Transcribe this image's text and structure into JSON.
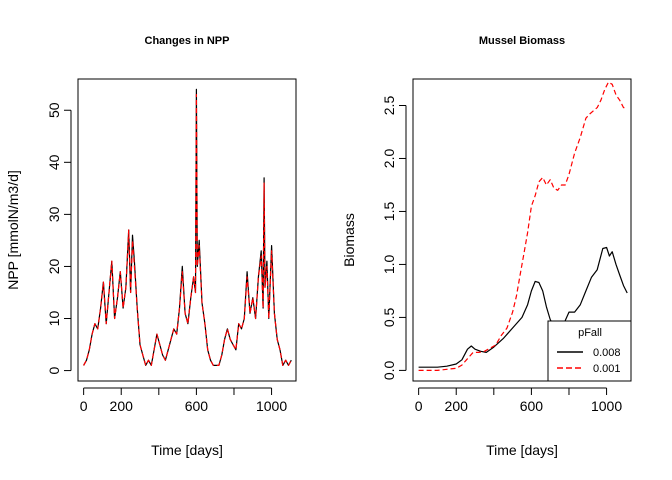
{
  "chart_data": [
    {
      "type": "line",
      "title": "Changes in NPP",
      "xlabel": "Time [days]",
      "ylabel": "NPP [mmolN/m3/d]",
      "xlim": [
        -30,
        1130
      ],
      "ylim": [
        -2,
        56
      ],
      "xticks": [
        0,
        200,
        400,
        600,
        800,
        1000
      ],
      "xtick_labels": [
        "0",
        "200",
        "",
        "600",
        "",
        "1000"
      ],
      "yticks": [
        0,
        10,
        20,
        30,
        40,
        50
      ],
      "ytick_labels": [
        "0",
        "10",
        "20",
        "30",
        "40",
        "50"
      ],
      "grid": false,
      "series": [
        {
          "style": "solid",
          "color": "#000000",
          "x": [
            0,
            15,
            30,
            45,
            60,
            75,
            90,
            105,
            120,
            135,
            150,
            165,
            180,
            195,
            210,
            225,
            240,
            250,
            260,
            270,
            285,
            300,
            315,
            330,
            345,
            360,
            375,
            390,
            405,
            420,
            435,
            450,
            465,
            480,
            495,
            510,
            525,
            540,
            555,
            570,
            585,
            595,
            600,
            605,
            615,
            630,
            645,
            660,
            675,
            690,
            705,
            720,
            735,
            750,
            765,
            780,
            795,
            810,
            825,
            840,
            855,
            870,
            885,
            900,
            915,
            930,
            945,
            955,
            960,
            965,
            975,
            985,
            1000,
            1015,
            1030,
            1045,
            1060,
            1075,
            1090,
            1105
          ],
          "values": [
            1,
            2,
            4,
            7,
            9,
            8,
            12,
            17,
            9,
            15,
            21,
            10,
            14,
            19,
            12,
            16,
            27,
            15,
            26,
            21,
            12,
            5,
            3,
            1,
            2,
            1,
            4,
            7,
            5,
            3,
            2,
            4,
            6,
            8,
            7,
            12,
            20,
            11,
            9,
            14,
            18,
            15,
            54,
            20,
            25,
            13,
            9,
            4,
            2,
            1,
            1,
            1,
            3,
            6,
            8,
            6,
            5,
            4,
            9,
            8,
            10,
            19,
            11,
            14,
            10,
            18,
            23,
            12,
            37,
            16,
            21,
            10,
            24,
            11,
            6,
            4,
            1,
            2,
            1,
            2
          ]
        },
        {
          "style": "dashed",
          "color": "#ff0000",
          "x": [
            0,
            15,
            30,
            45,
            60,
            75,
            90,
            105,
            120,
            135,
            150,
            165,
            180,
            195,
            210,
            225,
            240,
            250,
            260,
            270,
            285,
            300,
            315,
            330,
            345,
            360,
            375,
            390,
            405,
            420,
            435,
            450,
            465,
            480,
            495,
            510,
            525,
            540,
            555,
            570,
            585,
            595,
            600,
            605,
            615,
            630,
            645,
            660,
            675,
            690,
            705,
            720,
            735,
            750,
            765,
            780,
            795,
            810,
            825,
            840,
            855,
            870,
            885,
            900,
            915,
            930,
            945,
            955,
            960,
            965,
            975,
            985,
            1000,
            1015,
            1030,
            1045,
            1060,
            1075,
            1090,
            1105
          ],
          "values": [
            1,
            2,
            4,
            7,
            9,
            8,
            12,
            17,
            9,
            15,
            21,
            10,
            14,
            19,
            12,
            16,
            27,
            15,
            25,
            20,
            12,
            5,
            3,
            1,
            2,
            1,
            4,
            7,
            5,
            3,
            2,
            4,
            6,
            8,
            7,
            12,
            19,
            11,
            9,
            14,
            18,
            15,
            53,
            20,
            24,
            13,
            9,
            4,
            2,
            1,
            1,
            1,
            3,
            6,
            8,
            6,
            5,
            4,
            9,
            8,
            10,
            18,
            11,
            14,
            10,
            18,
            22,
            12,
            36,
            16,
            20,
            10,
            23,
            11,
            6,
            4,
            1,
            2,
            1,
            2
          ]
        }
      ]
    },
    {
      "type": "line",
      "title": "Mussel Biomass",
      "xlabel": "Time [days]",
      "ylabel": "Biomass",
      "xlim": [
        -30,
        1130
      ],
      "ylim": [
        -0.1,
        2.75
      ],
      "xticks": [
        0,
        200,
        400,
        600,
        800,
        1000
      ],
      "xtick_labels": [
        "0",
        "200",
        "",
        "600",
        "",
        "1000"
      ],
      "yticks": [
        0,
        0.5,
        1.0,
        1.5,
        2.0,
        2.5
      ],
      "ytick_labels": [
        "0.0",
        "0.5",
        "1.0",
        "1.5",
        "2.0",
        "2.5"
      ],
      "grid": false,
      "legend": {
        "title": "pFall",
        "placement": "bottom-right",
        "entries": [
          {
            "label": "0.008",
            "style": "solid",
            "color": "#000000"
          },
          {
            "label": "0.001",
            "style": "dashed",
            "color": "#ff0000"
          }
        ]
      },
      "series": [
        {
          "name": "0.008",
          "style": "solid",
          "color": "#000000",
          "x": [
            0,
            50,
            100,
            150,
            200,
            230,
            260,
            280,
            300,
            330,
            360,
            400,
            450,
            500,
            550,
            580,
            600,
            620,
            640,
            660,
            680,
            700,
            720,
            740,
            760,
            780,
            800,
            830,
            860,
            890,
            920,
            950,
            980,
            1000,
            1015,
            1030,
            1050,
            1070,
            1090,
            1110
          ],
          "values": [
            0.03,
            0.03,
            0.03,
            0.04,
            0.06,
            0.1,
            0.2,
            0.23,
            0.2,
            0.18,
            0.17,
            0.22,
            0.3,
            0.4,
            0.5,
            0.62,
            0.75,
            0.84,
            0.83,
            0.75,
            0.6,
            0.48,
            0.42,
            0.38,
            0.4,
            0.47,
            0.55,
            0.55,
            0.62,
            0.75,
            0.88,
            0.95,
            1.15,
            1.16,
            1.08,
            1.12,
            1.0,
            0.9,
            0.8,
            0.73
          ]
        },
        {
          "name": "0.001",
          "style": "dashed",
          "color": "#ff0000",
          "x": [
            0,
            50,
            100,
            150,
            200,
            230,
            260,
            290,
            320,
            350,
            380,
            410,
            440,
            470,
            500,
            520,
            540,
            560,
            580,
            600,
            620,
            640,
            660,
            680,
            700,
            720,
            740,
            760,
            780,
            800,
            830,
            860,
            890,
            910,
            930,
            950,
            970,
            990,
            1010,
            1030,
            1050,
            1070,
            1090,
            1110
          ],
          "values": [
            0.0,
            0.0,
            0.0,
            0.01,
            0.02,
            0.05,
            0.11,
            0.17,
            0.17,
            0.18,
            0.21,
            0.24,
            0.33,
            0.4,
            0.55,
            0.7,
            0.9,
            1.1,
            1.3,
            1.55,
            1.65,
            1.78,
            1.82,
            1.75,
            1.8,
            1.72,
            1.7,
            1.75,
            1.75,
            1.85,
            2.05,
            2.2,
            2.38,
            2.42,
            2.45,
            2.48,
            2.55,
            2.65,
            2.72,
            2.7,
            2.6,
            2.55,
            2.48,
            2.48
          ]
        }
      ]
    }
  ]
}
